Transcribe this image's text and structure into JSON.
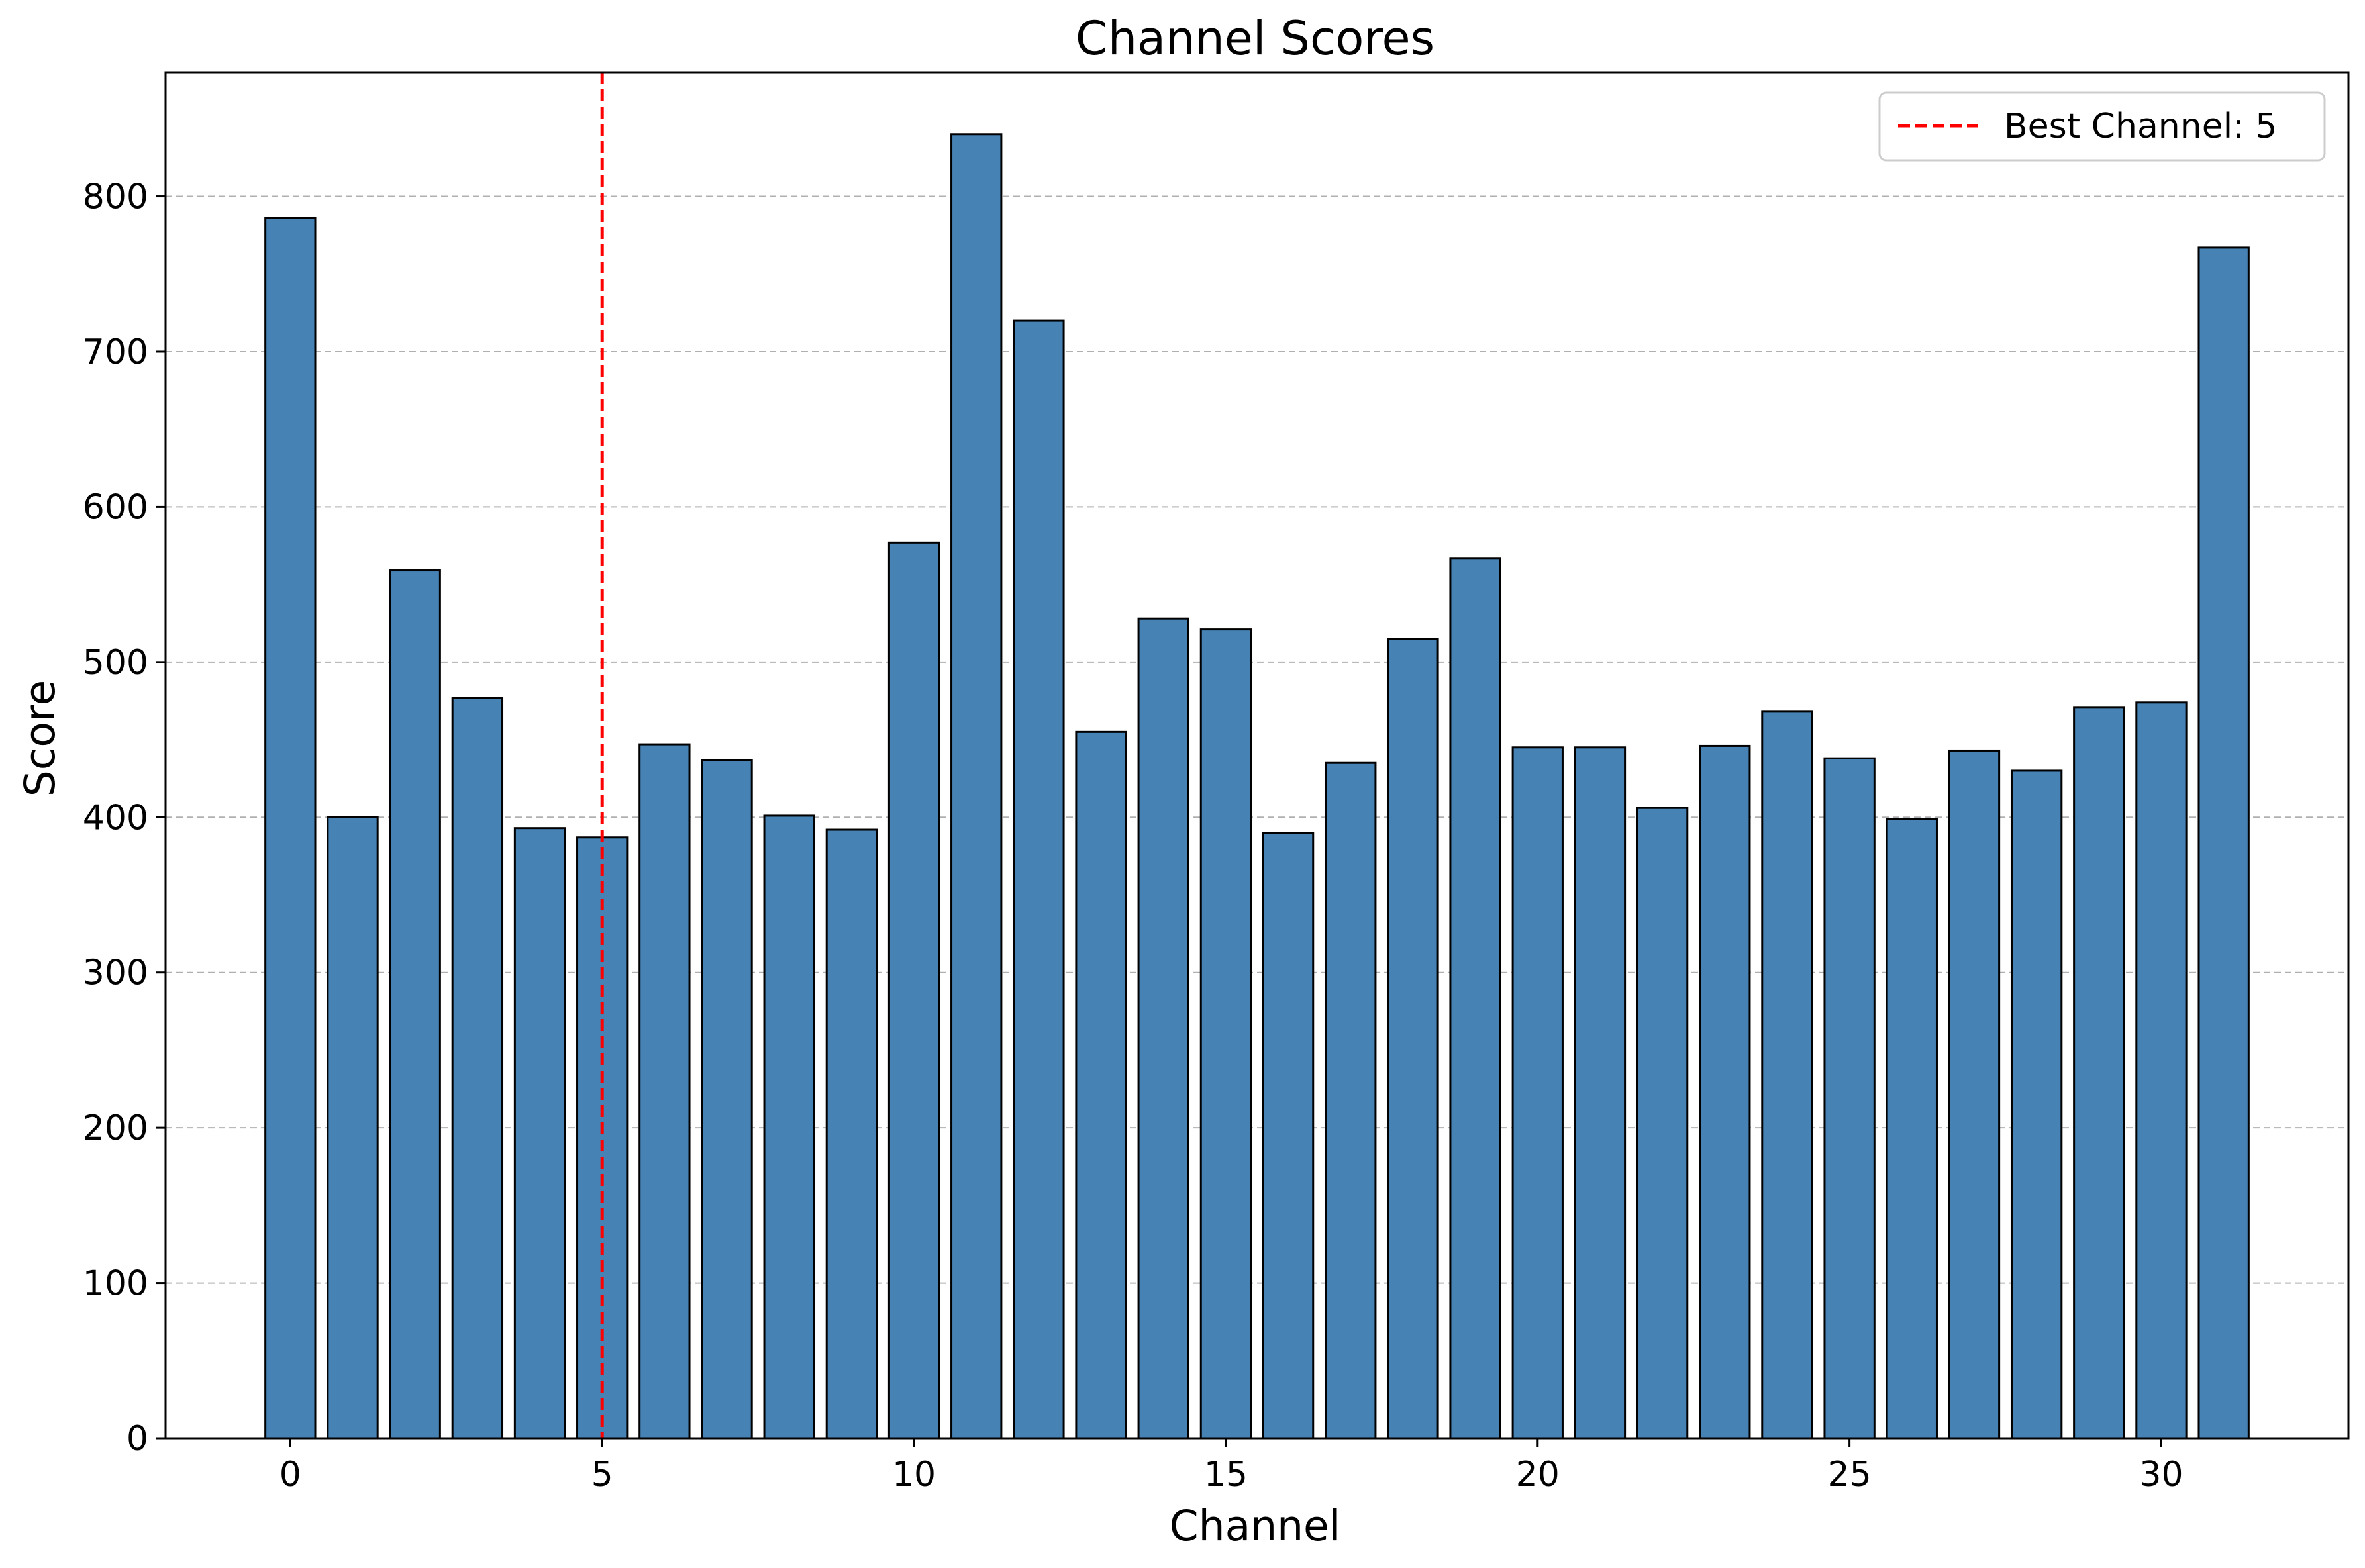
{
  "chart_data": {
    "type": "bar",
    "title": "Channel Scores",
    "xlabel": "Channel",
    "ylabel": "Score",
    "categories": [
      0,
      1,
      2,
      3,
      4,
      5,
      6,
      7,
      8,
      9,
      10,
      11,
      12,
      13,
      14,
      15,
      16,
      17,
      18,
      19,
      20,
      21,
      22,
      23,
      24,
      25,
      26,
      27,
      28,
      29,
      30,
      31
    ],
    "values": [
      786,
      400,
      559,
      477,
      393,
      387,
      447,
      437,
      401,
      392,
      577,
      840,
      720,
      455,
      528,
      521,
      390,
      435,
      515,
      567,
      445,
      445,
      406,
      446,
      468,
      438,
      399,
      443,
      430,
      471,
      474,
      767
    ],
    "xlim": [
      -2,
      33
    ],
    "ylim": [
      0,
      880
    ],
    "xticks": [
      0,
      5,
      10,
      15,
      20,
      25,
      30
    ],
    "yticks": [
      0,
      100,
      200,
      300,
      400,
      500,
      600,
      700,
      800
    ],
    "grid": "y-dashed",
    "bar_color": "#4682b4",
    "bar_edge_color": "#000000",
    "reference_line": {
      "x": 5,
      "color": "#ff0000",
      "style": "dashed",
      "label": "Best Channel: 5"
    },
    "legend": {
      "placement": "top-right",
      "entries": [
        "Best Channel: 5"
      ]
    }
  }
}
